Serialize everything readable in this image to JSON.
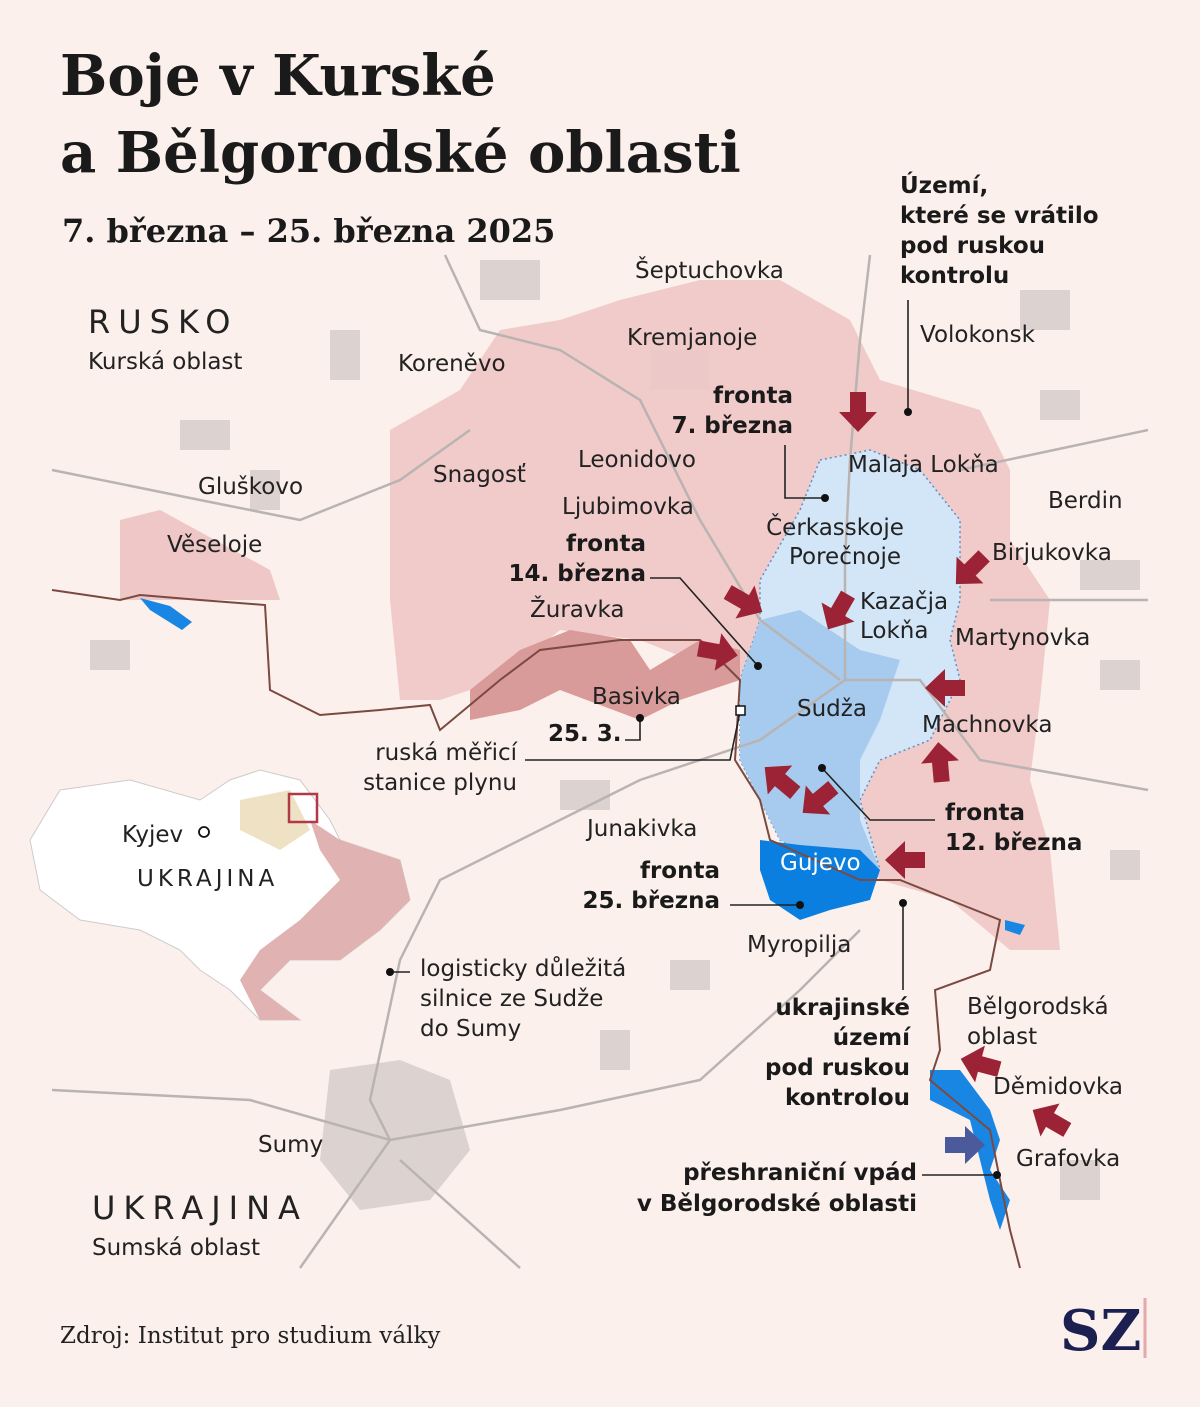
{
  "header": {
    "title": [
      "Boje v Kurské",
      "a Bělgorodské oblasti"
    ],
    "subtitle": "7. března – 25. března 2025"
  },
  "regions": {
    "russia": {
      "name": "RUSKO",
      "oblast": "Kurská oblast"
    },
    "ukraine": {
      "name": "UKRAJINA",
      "oblast": "Sumská oblast"
    }
  },
  "inset": {
    "capital": "Kyjev",
    "country": "UKRAJINA"
  },
  "places": [
    "Šeptuchovka",
    "Kremjanoje",
    "Volokonsk",
    "Koreněvo",
    "Leonidovo",
    "Snagosť",
    "Malaja Lokňa",
    "Gluškovo",
    "Berdin",
    "Ljubimovka",
    [
      "Čerkasskoje",
      "Porečnoje"
    ],
    "Věseloje",
    "Birjukovka",
    "Žuravka",
    [
      "Kazačja",
      "Lokňa"
    ],
    "Martynovka",
    "Basivka",
    "Sudža",
    "Machnovka",
    "Junakivka",
    "Gujevo",
    "Myropilja",
    [
      "Bělgorodská",
      "oblast"
    ],
    "Děmidovka",
    "Grafovka",
    "Sumy"
  ],
  "annotations": {
    "returned_territory": [
      "Území,",
      "které se vrátilo",
      "pod ruskou",
      "kontrolu"
    ],
    "front_mar7": [
      "fronta",
      "7. března"
    ],
    "front_mar14": [
      "fronta",
      "14. března"
    ],
    "front_mar25_short": "25. 3.",
    "gas_station": [
      "ruská měřicí",
      "stanice plynu"
    ],
    "front_mar12": [
      "fronta",
      "12. března"
    ],
    "front_mar25": [
      "fronta",
      "25. března"
    ],
    "road": [
      "logisticky důležitá",
      "silnice ze Sudže",
      "do Sumy"
    ],
    "ua_territory": [
      "ukrajinské",
      "území",
      "pod ruskou",
      "kontrolou"
    ],
    "incursion": [
      "přeshraniční vpád",
      "v Bělgorodské oblasti"
    ]
  },
  "source": "Zdroj: Institut pro studium války",
  "logo": "SZ"
}
